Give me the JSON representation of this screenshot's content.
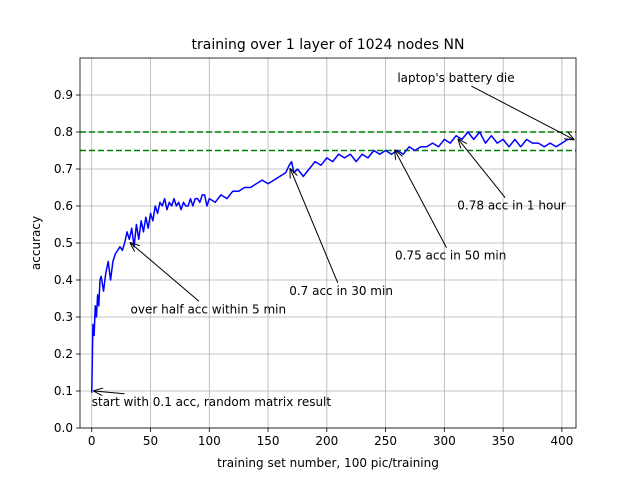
{
  "chart_data": {
    "type": "line",
    "title": "training over 1 layer of 1024 nodes NN",
    "xlabel": "training set number, 100 pic/training",
    "ylabel": "accuracy",
    "xlim": [
      -10,
      412
    ],
    "ylim": [
      0.0,
      1.0
    ],
    "xticks": [
      0,
      50,
      100,
      150,
      200,
      250,
      300,
      350,
      400
    ],
    "yticks": [
      0.0,
      0.1,
      0.2,
      0.3,
      0.4,
      0.5,
      0.6,
      0.7,
      0.8,
      0.9
    ],
    "xtick_labels": [
      "0",
      "50",
      "100",
      "150",
      "200",
      "250",
      "300",
      "350",
      "400"
    ],
    "ytick_labels": [
      "0.0",
      "0.1",
      "0.2",
      "0.3",
      "0.4",
      "0.5",
      "0.6",
      "0.7",
      "0.8",
      "0.9"
    ],
    "grid": true,
    "series": [
      {
        "color": "#0000ff",
        "x": [
          0,
          1,
          2,
          3,
          4,
          5,
          6,
          7,
          8,
          10,
          12,
          14,
          16,
          18,
          20,
          22,
          24,
          26,
          28,
          30,
          32,
          34,
          36,
          38,
          40,
          42,
          44,
          46,
          48,
          50,
          52,
          54,
          56,
          58,
          60,
          62,
          64,
          66,
          68,
          70,
          72,
          74,
          76,
          78,
          80,
          82,
          84,
          86,
          88,
          90,
          92,
          94,
          96,
          98,
          100,
          105,
          110,
          115,
          120,
          125,
          130,
          135,
          140,
          145,
          150,
          155,
          160,
          165,
          168,
          170,
          172,
          175,
          180,
          185,
          190,
          195,
          200,
          205,
          210,
          215,
          220,
          225,
          230,
          235,
          240,
          245,
          250,
          255,
          260,
          265,
          270,
          275,
          280,
          285,
          290,
          295,
          300,
          305,
          310,
          315,
          320,
          325,
          330,
          335,
          340,
          345,
          350,
          355,
          360,
          365,
          370,
          375,
          380,
          385,
          390,
          395,
          400,
          405,
          410
        ],
        "y": [
          0.095,
          0.28,
          0.25,
          0.33,
          0.3,
          0.36,
          0.33,
          0.4,
          0.41,
          0.37,
          0.42,
          0.45,
          0.4,
          0.45,
          0.47,
          0.48,
          0.49,
          0.48,
          0.5,
          0.53,
          0.51,
          0.54,
          0.49,
          0.55,
          0.51,
          0.56,
          0.53,
          0.57,
          0.54,
          0.58,
          0.56,
          0.6,
          0.58,
          0.61,
          0.6,
          0.62,
          0.59,
          0.61,
          0.6,
          0.62,
          0.6,
          0.61,
          0.59,
          0.61,
          0.6,
          0.6,
          0.62,
          0.6,
          0.62,
          0.62,
          0.61,
          0.63,
          0.63,
          0.6,
          0.62,
          0.61,
          0.63,
          0.62,
          0.64,
          0.64,
          0.65,
          0.65,
          0.66,
          0.67,
          0.66,
          0.67,
          0.68,
          0.69,
          0.71,
          0.72,
          0.69,
          0.7,
          0.68,
          0.7,
          0.72,
          0.71,
          0.73,
          0.72,
          0.74,
          0.73,
          0.74,
          0.72,
          0.74,
          0.73,
          0.75,
          0.74,
          0.75,
          0.74,
          0.75,
          0.74,
          0.76,
          0.75,
          0.76,
          0.76,
          0.77,
          0.76,
          0.78,
          0.77,
          0.79,
          0.78,
          0.8,
          0.78,
          0.8,
          0.77,
          0.79,
          0.77,
          0.78,
          0.76,
          0.78,
          0.76,
          0.78,
          0.77,
          0.77,
          0.76,
          0.77,
          0.76,
          0.77,
          0.78,
          0.78
        ]
      }
    ],
    "reference_lines": [
      {
        "y": 0.8,
        "color": "#008000",
        "style": "dashed"
      },
      {
        "y": 0.75,
        "color": "#008000",
        "style": "dashed"
      }
    ],
    "annotations": [
      {
        "text": "start with 0.1 acc, random matrix result",
        "point": [
          2,
          0.1
        ],
        "text_at": [
          0,
          0.06
        ]
      },
      {
        "text": "over half acc within 5 min",
        "point": [
          33,
          0.5
        ],
        "text_at": [
          33,
          0.31
        ]
      },
      {
        "text": "0.7 acc in 30 min",
        "point": [
          169,
          0.7
        ],
        "text_at": [
          168,
          0.36
        ]
      },
      {
        "text": "0.75 acc in 50 min",
        "point": [
          258,
          0.75
        ],
        "text_at": [
          258,
          0.455
        ]
      },
      {
        "text": "0.78 acc in 1 hour",
        "point": [
          312,
          0.78
        ],
        "text_at": [
          311,
          0.59
        ]
      },
      {
        "text": "laptop's battery die",
        "point": [
          410,
          0.78
        ],
        "text_at": [
          260,
          0.935
        ]
      }
    ]
  }
}
